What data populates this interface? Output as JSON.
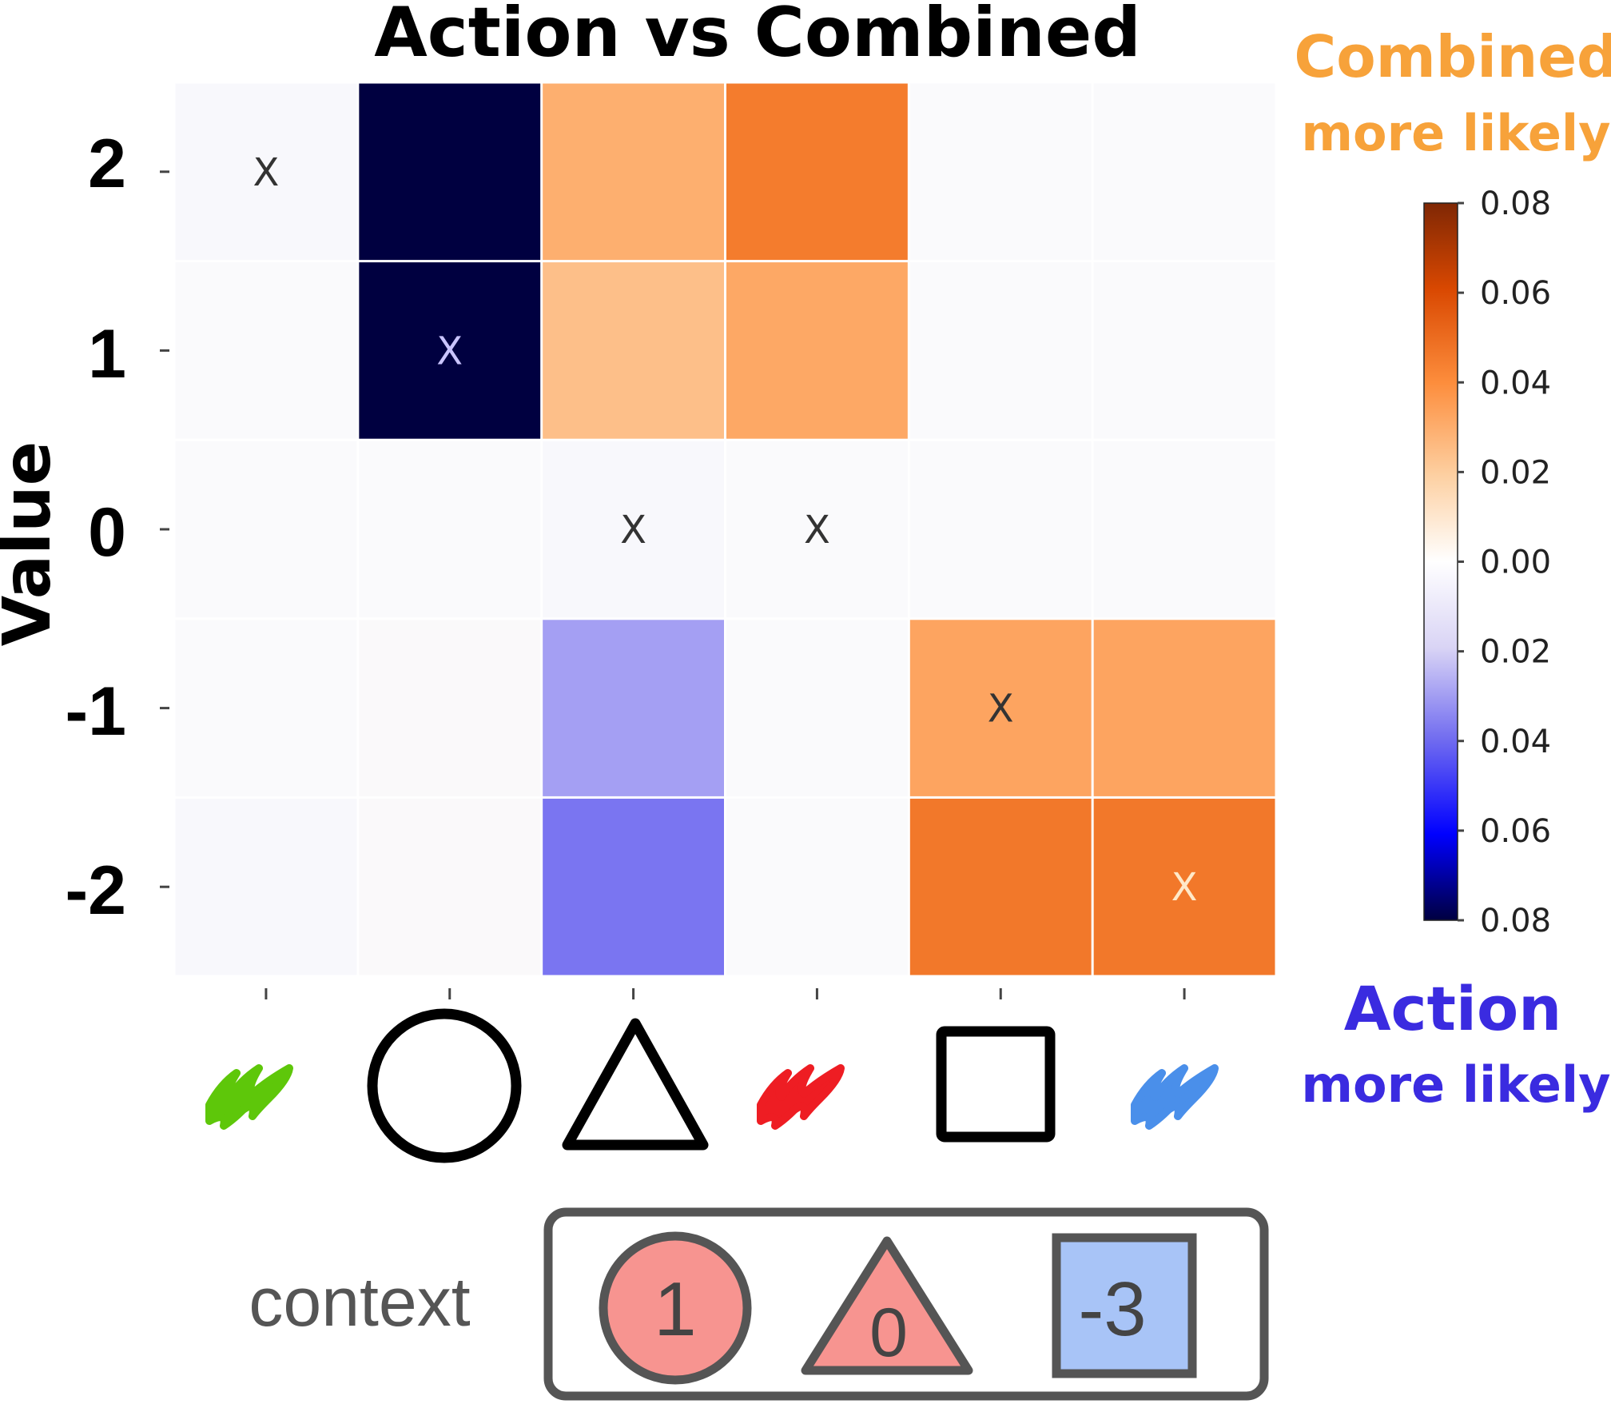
{
  "chart_data": {
    "type": "heatmap",
    "title": "Action vs Combined",
    "ylabel": "Value",
    "y_categories": [
      "2",
      "1",
      "0",
      "-1",
      "-2"
    ],
    "x_categories": [
      "green-scribble-icon",
      "circle-icon",
      "triangle-icon",
      "red-scribble-icon",
      "square-icon",
      "blue-scribble-icon"
    ],
    "values": [
      [
        -0.001,
        -0.08,
        0.03,
        0.045,
        0.0,
        0.0
      ],
      [
        0.0,
        -0.08,
        0.025,
        0.032,
        0.0,
        0.0
      ],
      [
        0.0,
        0.0,
        -0.001,
        0.0,
        0.0,
        0.0
      ],
      [
        0.0,
        0.0005,
        -0.03,
        0.0,
        0.033,
        0.033
      ],
      [
        -0.001,
        0.0005,
        -0.038,
        0.0,
        0.046,
        0.046
      ]
    ],
    "marker": "X",
    "markers": [
      [
        0,
        0
      ],
      [
        1,
        1
      ],
      [
        2,
        2
      ],
      [
        2,
        3
      ],
      [
        3,
        4
      ],
      [
        4,
        5
      ]
    ],
    "colorbar": {
      "range": [
        -0.08,
        0.08
      ],
      "tick_values": [
        0.08,
        0.06,
        0.04,
        0.02,
        0.0,
        -0.02,
        -0.04,
        -0.06,
        -0.08
      ],
      "tick_labels": [
        "0.08",
        "0.06",
        "0.04",
        "0.02",
        "0.00",
        "0.02",
        "0.04",
        "0.06",
        "0.08"
      ]
    },
    "annotations": {
      "combined_top": "Combined",
      "combined_bottom": "more likely",
      "action_top": "Action",
      "action_bottom": "more likely"
    },
    "colors": {
      "combined": "#F7A23A",
      "action": "#3A2BE0",
      "scribble_green": "#5EC70A",
      "scribble_red": "#EE1D23",
      "scribble_blue": "#4A8FEA"
    }
  },
  "context": {
    "label": "context",
    "items": [
      {
        "shape": "circle-icon",
        "value": "1",
        "fill": "#F79490"
      },
      {
        "shape": "triangle-icon",
        "value": "0",
        "fill": "#F79490"
      },
      {
        "shape": "square-icon",
        "value": "-3",
        "fill": "#A8C4F7"
      }
    ]
  }
}
